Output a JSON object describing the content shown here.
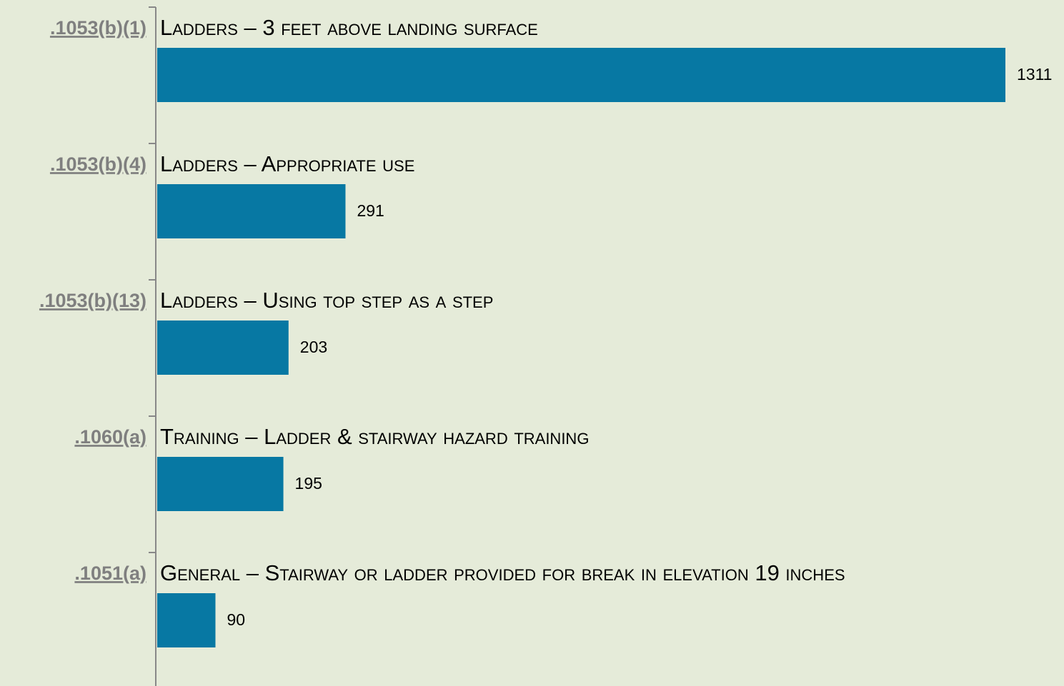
{
  "chart_data": {
    "type": "bar",
    "orientation": "horizontal",
    "categories": [
      ".1053(b)(1)",
      ".1053(b)(4)",
      ".1053(b)(13)",
      ".1060(a)",
      ".1051(a)"
    ],
    "descriptions": [
      "Ladders – 3 feet above landing surface",
      "Ladders – Appropriate use",
      "Ladders – Using top step as a step",
      "Training – Ladder & stairway hazard training",
      "General – Stairway or ladder provided for break in elevation 19 inches"
    ],
    "values": [
      1311,
      291,
      203,
      195,
      90
    ],
    "color": "#0778a3"
  }
}
